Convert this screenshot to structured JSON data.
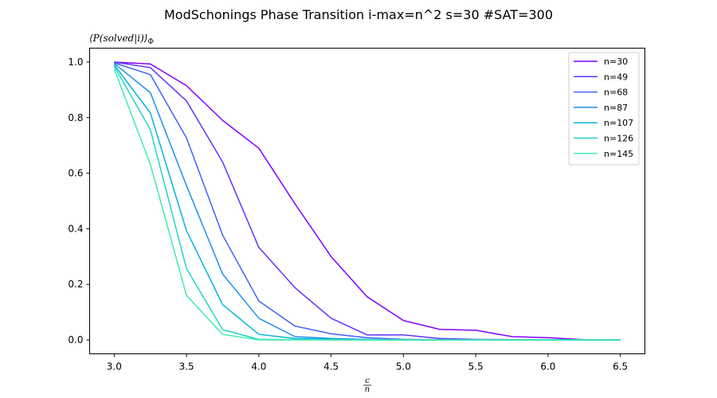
{
  "chart_data": {
    "type": "line",
    "title": "ModSchonings Phase Transition  i-max=n^2 s=30 #SAT=300",
    "ylabel": "⟨P(solved|i)⟩",
    "ylabel_subscript": "Φ",
    "xlabel_numerator": "c",
    "xlabel_denominator": "n",
    "xlim": [
      2.83,
      6.67
    ],
    "ylim": [
      -0.05,
      1.05
    ],
    "xticks": [
      "3.0",
      "3.5",
      "4.0",
      "4.5",
      "5.0",
      "5.5",
      "6.0",
      "6.5"
    ],
    "yticks": [
      "0.0",
      "0.2",
      "0.4",
      "0.6",
      "0.8",
      "1.0"
    ],
    "grid": false,
    "legend_position": "top-right",
    "x": [
      3.0,
      3.25,
      3.5,
      3.75,
      4.0,
      4.25,
      4.5,
      4.75,
      5.0,
      5.25,
      5.5,
      5.75,
      6.0,
      6.25,
      6.5
    ],
    "series": [
      {
        "name": "n=30",
        "color": "#8000ff",
        "values": [
          1.0,
          0.993,
          0.915,
          0.79,
          0.69,
          0.49,
          0.3,
          0.155,
          0.07,
          0.038,
          0.035,
          0.012,
          0.008,
          0.001,
          0.0
        ]
      },
      {
        "name": "n=49",
        "color": "#6033fd",
        "values": [
          1.0,
          0.98,
          0.86,
          0.64,
          0.333,
          0.188,
          0.078,
          0.018,
          0.018,
          0.005,
          0.002,
          0.001,
          0.0,
          0.0,
          0.0
        ]
      },
      {
        "name": "n=68",
        "color": "#3f63f6",
        "values": [
          0.997,
          0.955,
          0.727,
          0.377,
          0.14,
          0.05,
          0.022,
          0.008,
          0.002,
          0.001,
          0.0,
          0.0,
          0.0,
          0.0,
          0.0
        ]
      },
      {
        "name": "n=87",
        "color": "#1f90ea",
        "values": [
          0.995,
          0.89,
          0.555,
          0.237,
          0.078,
          0.012,
          0.005,
          0.002,
          0.0,
          0.0,
          0.0,
          0.0,
          0.0,
          0.0,
          0.0
        ]
      },
      {
        "name": "n=107",
        "color": "#00b5da",
        "values": [
          0.99,
          0.817,
          0.393,
          0.127,
          0.02,
          0.005,
          0.002,
          0.0,
          0.0,
          0.0,
          0.0,
          0.0,
          0.0,
          0.0,
          0.0
        ]
      },
      {
        "name": "n=126",
        "color": "#20d5c6",
        "values": [
          0.985,
          0.757,
          0.257,
          0.037,
          0.002,
          0.001,
          0.0,
          0.0,
          0.0,
          0.0,
          0.0,
          0.0,
          0.0,
          0.0,
          0.0
        ]
      },
      {
        "name": "n=145",
        "color": "#40ecb1",
        "values": [
          0.975,
          0.632,
          0.16,
          0.02,
          0.0,
          0.0,
          0.0,
          0.0,
          0.0,
          0.0,
          0.0,
          0.0,
          0.0,
          0.0,
          0.0
        ]
      }
    ]
  }
}
